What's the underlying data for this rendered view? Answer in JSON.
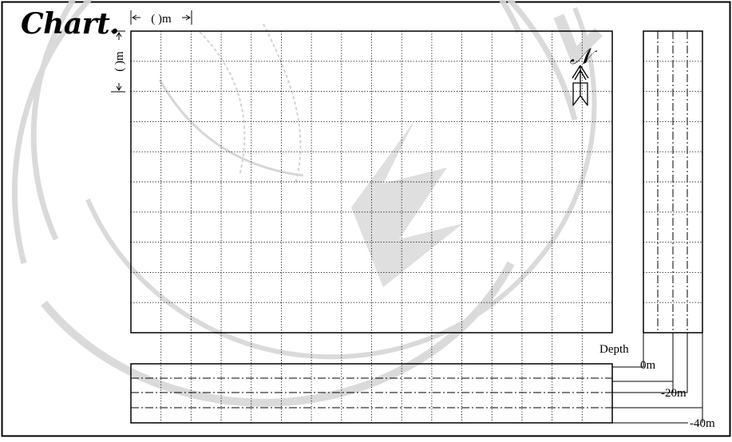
{
  "title": "Chart.",
  "scale": {
    "horizontal_label": "(   )m",
    "vertical_label": "(   )m"
  },
  "north_symbol": "𝒩",
  "depth": {
    "label": "Depth",
    "levels": [
      "0m",
      "-20m",
      "-40m"
    ]
  },
  "grid": {
    "columns": 16,
    "rows": 10
  },
  "colors": {
    "line": "#000000",
    "watermark": "#d4d4d4"
  }
}
